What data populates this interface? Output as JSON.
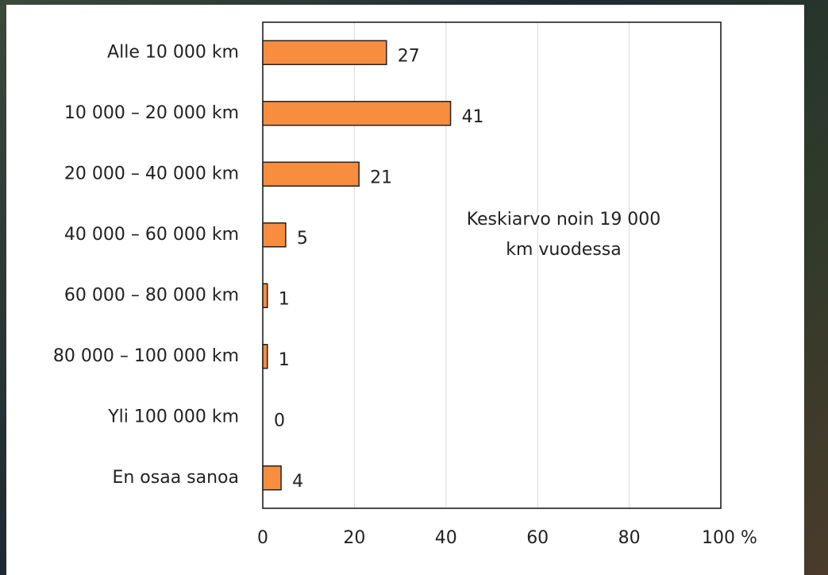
{
  "chart_data": {
    "type": "barh",
    "categories": [
      "Alle 10 000 km",
      "10 000 – 20 000 km",
      "20 000 – 40 000 km",
      "40 000 – 60 000 km",
      "60 000 – 80 000 km",
      "80 000 – 100 000 km",
      "Yli 100 000 km",
      "En osaa sanoa"
    ],
    "values": [
      27,
      41,
      21,
      5,
      1,
      1,
      0,
      4
    ],
    "color": "#f68d3f",
    "xlim": [
      0,
      100
    ],
    "xticks": [
      0,
      20,
      40,
      60,
      80,
      {
        "value": 100,
        "label": "100 %"
      }
    ],
    "grid": true,
    "annotation": [
      "Keskiarvo noin 19 000",
      "km vuodessa"
    ]
  }
}
